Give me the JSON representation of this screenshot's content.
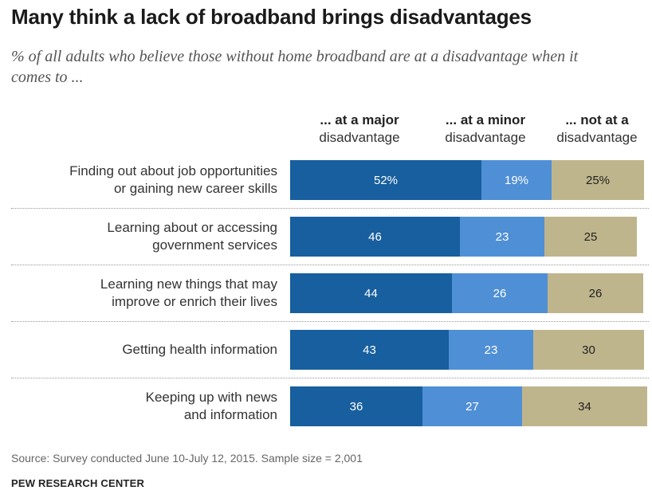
{
  "title": "Many think a lack of broadband brings disadvantages",
  "subtitle": "% of all adults who believe those without home broadband are at a disadvantage when it comes to ...",
  "columns": [
    {
      "line1": "... at a major",
      "line2": "disadvantage"
    },
    {
      "line1": "... at a minor",
      "line2": "disadvantage"
    },
    {
      "line1": "... not at a",
      "line2": "disadvantage"
    }
  ],
  "rows": [
    {
      "line1": "Finding out about job opportunities",
      "line2": "or gaining new career skills",
      "major": "52%",
      "minor": "19%",
      "notat": "25%"
    },
    {
      "line1": "Learning about or accessing",
      "line2": "government services",
      "major": "46",
      "minor": "23",
      "notat": "25"
    },
    {
      "line1": "Learning new things that may",
      "line2": "improve or enrich their lives",
      "major": "44",
      "minor": "26",
      "notat": "26"
    },
    {
      "line1": "Getting health information",
      "line2": "",
      "major": "43",
      "minor": "23",
      "notat": "30"
    },
    {
      "line1": "Keeping up with news",
      "line2": "and information",
      "major": "36",
      "minor": "27",
      "notat": "34"
    }
  ],
  "source": "Source: Survey conducted June 10-July 12, 2015. Sample size = 2,001",
  "brand": "PEW RESEARCH CENTER",
  "colors": {
    "major": "#175f9e",
    "minor": "#4f8fd6",
    "notat": "#bfb58c"
  },
  "chart_data": {
    "type": "bar",
    "orientation": "horizontal",
    "stacked": true,
    "categories": [
      "Finding out about job opportunities or gaining new career skills",
      "Learning about or accessing government services",
      "Learning new things that may improve or enrich their lives",
      "Getting health information",
      "Keeping up with news and information"
    ],
    "series": [
      {
        "name": "... at a major disadvantage",
        "values": [
          52,
          46,
          44,
          43,
          36
        ]
      },
      {
        "name": "... at a minor disadvantage",
        "values": [
          19,
          23,
          26,
          23,
          27
        ]
      },
      {
        "name": "... not at a disadvantage",
        "values": [
          25,
          25,
          26,
          30,
          34
        ]
      }
    ],
    "title": "Many think a lack of broadband brings disadvantages",
    "subtitle": "% of all adults who believe those without home broadband are at a disadvantage when it comes to ...",
    "unit": "%",
    "xlim": [
      0,
      100
    ],
    "grid": false,
    "legend": "top"
  }
}
